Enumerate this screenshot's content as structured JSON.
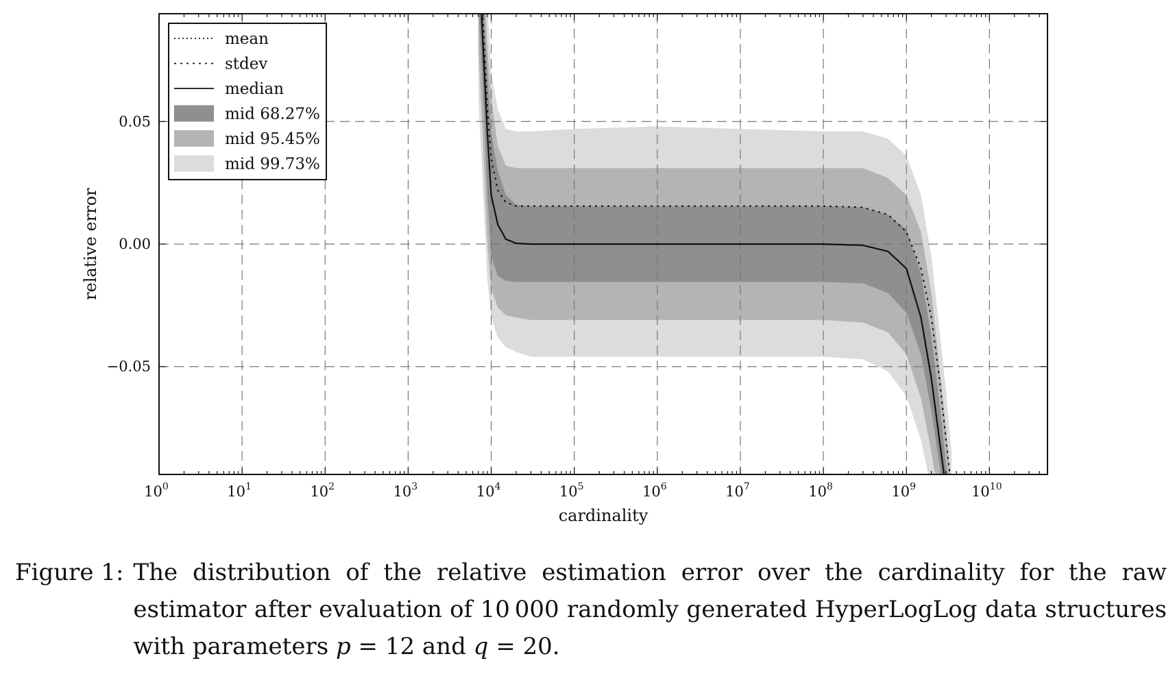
{
  "chart_data": {
    "type": "area",
    "xscale": "log",
    "xlabel": "cardinality",
    "ylabel": "relative error",
    "xlim": [
      1,
      50000000000
    ],
    "ylim": [
      -0.094,
      0.094
    ],
    "grid": true,
    "legend_position": "top-left",
    "x_ticks": [
      {
        "base": "10",
        "exp": "0",
        "value": 1
      },
      {
        "base": "10",
        "exp": "1",
        "value": 10
      },
      {
        "base": "10",
        "exp": "2",
        "value": 100
      },
      {
        "base": "10",
        "exp": "3",
        "value": 1000
      },
      {
        "base": "10",
        "exp": "4",
        "value": 10000
      },
      {
        "base": "10",
        "exp": "5",
        "value": 100000
      },
      {
        "base": "10",
        "exp": "6",
        "value": 1000000
      },
      {
        "base": "10",
        "exp": "7",
        "value": 10000000
      },
      {
        "base": "10",
        "exp": "8",
        "value": 100000000
      },
      {
        "base": "10",
        "exp": "9",
        "value": 1000000000
      },
      {
        "base": "10",
        "exp": "10",
        "value": 10000000000
      }
    ],
    "y_ticks": [
      {
        "label": "0.05",
        "value": 0.05
      },
      {
        "label": "0.00",
        "value": 0.0
      },
      {
        "label": "−0.05",
        "value": -0.05
      }
    ],
    "x": [
      7000,
      8000,
      9000,
      10000,
      12000,
      15000,
      20000,
      30000,
      100000,
      1000000,
      10000000,
      100000000,
      300000000,
      600000000,
      1000000000,
      1500000000,
      2000000000,
      2500000000,
      3000000000,
      3500000000
    ],
    "series": [
      {
        "name": "mean",
        "style": "dotted",
        "values": [
          0.12,
          0.08,
          0.045,
          0.02,
          0.008,
          0.002,
          0.0003,
          0.0,
          0.0,
          0.0,
          0.0,
          0.0,
          -0.0005,
          -0.003,
          -0.01,
          -0.03,
          -0.055,
          -0.08,
          -0.1,
          -0.12
        ]
      },
      {
        "name": "stdev",
        "style": "dashed",
        "values": [
          0.13,
          0.09,
          0.055,
          0.035,
          0.022,
          0.017,
          0.0155,
          0.0155,
          0.0155,
          0.0155,
          0.0155,
          0.0155,
          0.015,
          0.012,
          0.005,
          -0.01,
          -0.03,
          -0.055,
          -0.08,
          -0.1
        ]
      },
      {
        "name": "median",
        "style": "solid",
        "values": [
          0.12,
          0.08,
          0.045,
          0.02,
          0.008,
          0.002,
          0.0003,
          0.0,
          0.0,
          0.0,
          0.0,
          0.0,
          -0.0005,
          -0.003,
          -0.01,
          -0.03,
          -0.055,
          -0.08,
          -0.1,
          -0.12
        ]
      },
      {
        "name": "mid 68.27%",
        "style": "band",
        "color": "#8f8f8f",
        "lower": [
          0.1,
          0.06,
          0.02,
          -0.005,
          -0.013,
          -0.015,
          -0.0155,
          -0.0155,
          -0.0155,
          -0.0155,
          -0.0155,
          -0.0155,
          -0.016,
          -0.02,
          -0.028,
          -0.045,
          -0.068,
          -0.09,
          -0.11,
          -0.13
        ],
        "upper": [
          0.14,
          0.1,
          0.07,
          0.045,
          0.03,
          0.02,
          0.016,
          0.0155,
          0.0155,
          0.0155,
          0.0155,
          0.0155,
          0.015,
          0.012,
          0.006,
          -0.012,
          -0.038,
          -0.065,
          -0.09,
          -0.11
        ]
      },
      {
        "name": "mid 95.45%",
        "style": "band",
        "color": "#b4b4b4",
        "lower": [
          0.08,
          0.04,
          0.0,
          -0.018,
          -0.026,
          -0.029,
          -0.03,
          -0.031,
          -0.031,
          -0.031,
          -0.031,
          -0.031,
          -0.032,
          -0.036,
          -0.045,
          -0.063,
          -0.085,
          -0.105,
          -0.12,
          -0.14
        ],
        "upper": [
          0.15,
          0.12,
          0.08,
          0.06,
          0.04,
          0.032,
          0.031,
          0.031,
          0.031,
          0.031,
          0.031,
          0.031,
          0.031,
          0.027,
          0.02,
          0.005,
          -0.02,
          -0.05,
          -0.075,
          -0.1
        ]
      },
      {
        "name": "mid 99.73%",
        "style": "band",
        "color": "#dcdcdc",
        "lower": [
          0.06,
          0.02,
          -0.015,
          -0.03,
          -0.038,
          -0.042,
          -0.044,
          -0.046,
          -0.046,
          -0.046,
          -0.046,
          -0.046,
          -0.047,
          -0.052,
          -0.062,
          -0.08,
          -0.1,
          -0.12,
          -0.135,
          -0.15
        ],
        "upper": [
          0.16,
          0.13,
          0.1,
          0.07,
          0.055,
          0.047,
          0.046,
          0.046,
          0.047,
          0.048,
          0.047,
          0.046,
          0.046,
          0.043,
          0.036,
          0.02,
          -0.005,
          -0.035,
          -0.06,
          -0.085
        ]
      }
    ]
  },
  "caption": {
    "label": "Figure 1:",
    "text_before_p": "The distribution of the relative estimation error over the cardinality for the raw estimator after evaluation of 10 000 randomly generated HyperLogLog data structures with parameters ",
    "var_p": "p",
    "eq_p": " = 12 and ",
    "var_q": "q",
    "eq_q": " = 20."
  }
}
